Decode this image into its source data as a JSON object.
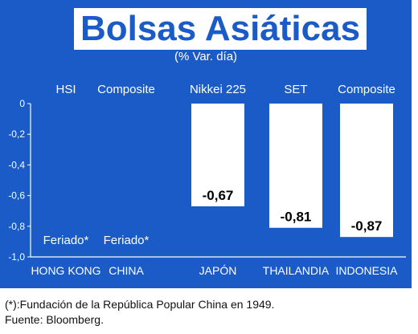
{
  "title": "Bolsas Asiáticas",
  "subtitle": "(% Var. día)",
  "footnotes": [
    "(*):Fundación de la República Popular China en 1949.",
    "Fuente: Bloomberg."
  ],
  "colors": {
    "background": "#1a5bc7",
    "bar": "#ffffff",
    "text": "#ffffff"
  },
  "chart_data": {
    "type": "bar",
    "title": "Bolsas Asiáticas",
    "subtitle": "(% Var. día)",
    "categories": [
      "HONG KONG",
      "CHINA",
      "JAPÓN",
      "THAILANDIA",
      "INDONESIA"
    ],
    "indices": [
      "HSI",
      "Composite",
      "Nikkei 225",
      "SET",
      "Composite"
    ],
    "values": [
      null,
      null,
      -0.67,
      -0.81,
      -0.87
    ],
    "data_labels": [
      "Feriado*",
      "Feriado*",
      "-0,67",
      "-0,81",
      "-0,87"
    ],
    "yticks": [
      "0",
      "-0,2",
      "-0,4",
      "-0,6",
      "-0,8",
      "-1,0"
    ],
    "ylim": [
      -1.0,
      0
    ],
    "grid": false,
    "legend": "none"
  }
}
